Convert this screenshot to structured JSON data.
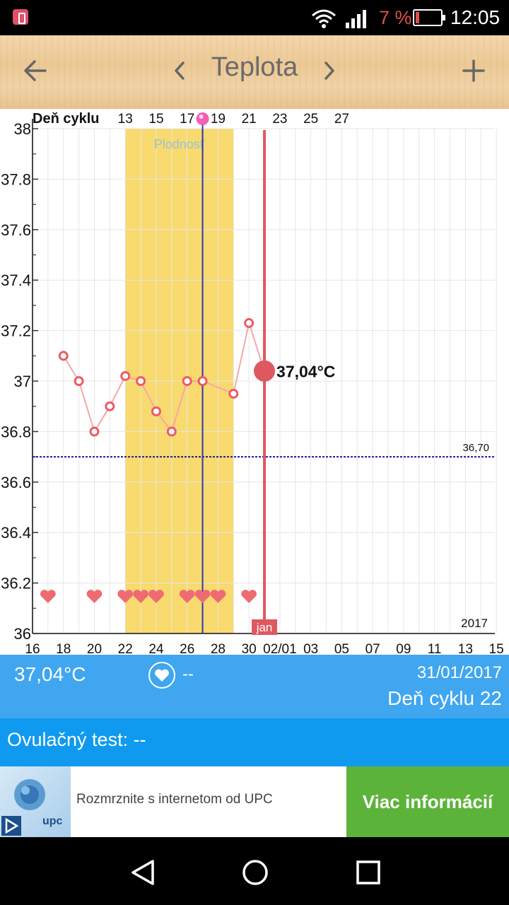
{
  "status": {
    "battery_pct": "7 %",
    "time": "12:05"
  },
  "header": {
    "title": "Teplota"
  },
  "chart_data": {
    "type": "line",
    "top_label": "Deň cyklu",
    "cycle_ticks": [
      "13",
      "15",
      "17",
      "19",
      "21",
      "23",
      "25",
      "27"
    ],
    "x_ticks": [
      "16",
      "18",
      "20",
      "22",
      "24",
      "26",
      "28",
      "30",
      "02/01",
      "03",
      "05",
      "07",
      "09",
      "11",
      "13",
      "15"
    ],
    "ylim": [
      36,
      38
    ],
    "y_ticks": [
      "38",
      "37.8",
      "37.6",
      "37.4",
      "37.2",
      "37",
      "36.8",
      "36.6",
      "36.4",
      "36.2",
      "36"
    ],
    "series": [
      {
        "x": [
          18,
          19,
          20,
          21,
          22,
          23,
          24,
          25,
          26,
          27,
          29,
          30,
          31
        ],
        "values": [
          37.1,
          37.0,
          36.8,
          36.9,
          37.02,
          37.0,
          36.88,
          36.8,
          37.0,
          37.0,
          36.95,
          37.23,
          37.04
        ]
      }
    ],
    "hearts_x": [
      17,
      20,
      22,
      23,
      24,
      26,
      27,
      28,
      30
    ],
    "fertile_label": "Plodnosť",
    "fertile_range": [
      22,
      29
    ],
    "ovulation_x": 27,
    "selected_x": 31,
    "selected_label": "37,04°C",
    "coverline_value": 36.7,
    "coverline_label": "36,70",
    "month_label": "jan",
    "year_label": "2017",
    "colors": {
      "line": "#f4a8a8",
      "point": "#ee5a64",
      "fertile": "#f8da6e",
      "ovulation": "#2b35b0",
      "selected": "#de5860",
      "coverline": "#1a1a9a"
    }
  },
  "info": {
    "temperature": "37,04°C",
    "intercourse": "--",
    "date": "31/01/2017",
    "cycle_day": "Deň cyklu 22"
  },
  "ovulation_test": {
    "label": "Ovulačný test: --"
  },
  "ad": {
    "brand": "upc",
    "text": "Rozmrznite s internetom od UPC",
    "cta": "Viac informácií"
  }
}
